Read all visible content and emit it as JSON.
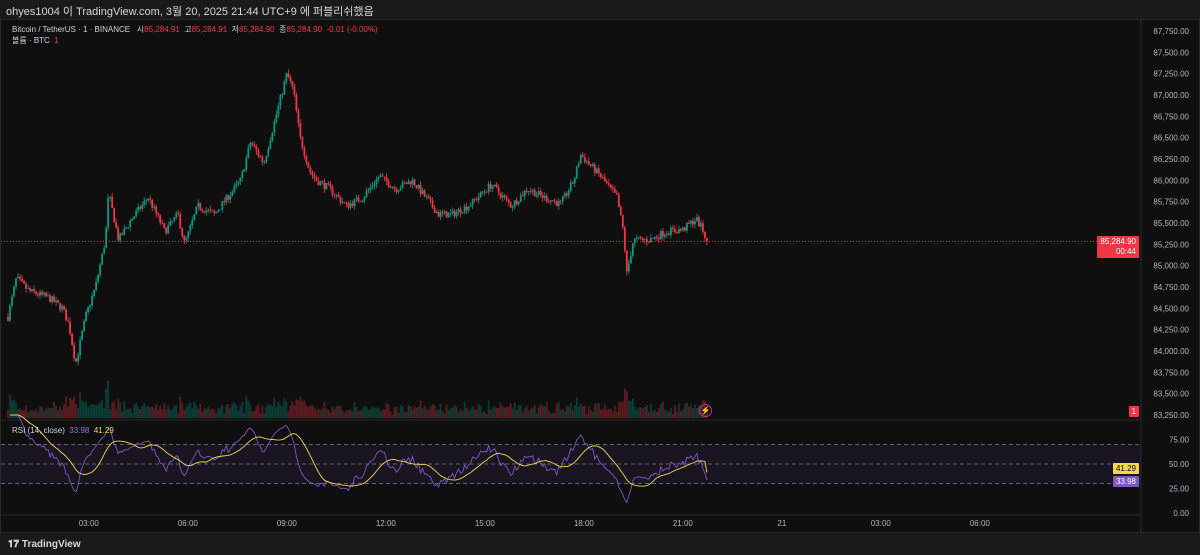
{
  "topbar": {
    "text": "ohyes1004 이 TradingView.com, 3월 20, 2025 21:44 UTC+9 에 퍼블리쉬했음"
  },
  "legend": {
    "symbol": "Bitcoin / TetherUS · 1 · BINANCE",
    "o_label": "시",
    "o": "85,284.91",
    "h_label": "고",
    "h": "85,284.91",
    "l_label": "저",
    "l": "85,284.90",
    "c_label": "종",
    "c": "85,284.90",
    "change": "-0.01 (-0.00%)",
    "volume_label": "볼륨 · BTC",
    "volume": "1"
  },
  "rsi_legend": {
    "label": "RSI (14, close)",
    "rsi": "33.98",
    "ma": "41.29"
  },
  "price_tag": {
    "price": "85,284.90",
    "countdown": "00:44"
  },
  "volume_tag": "1",
  "rsi_tags": {
    "ma": "41.29",
    "rsi": "33.98"
  },
  "footer": {
    "brand": "TradingView"
  },
  "colors": {
    "up": "#089981",
    "down": "#f23645",
    "rsi": "#7e57c2",
    "rsi_ma": "#f5d94b"
  },
  "chart_data": {
    "type": "candlestick",
    "title": "Bitcoin / TetherUS · 1 · BINANCE",
    "ylim": [
      83250,
      87750
    ],
    "y_ticks": [
      "87,750.00",
      "87,500.00",
      "87,250.00",
      "87,000.00",
      "86,750.00",
      "86,500.00",
      "86,250.00",
      "86,000.00",
      "85,750.00",
      "85,500.00",
      "85,250.00",
      "85,000.00",
      "84,750.00",
      "84,500.00",
      "84,250.00",
      "84,000.00",
      "83,750.00",
      "83,500.00",
      "83,250.00"
    ],
    "x_ticks": [
      {
        "h": 3,
        "label": "03:00"
      },
      {
        "h": 6,
        "label": "06:00"
      },
      {
        "h": 9,
        "label": "09:00"
      },
      {
        "h": 12,
        "label": "12:00"
      },
      {
        "h": 15,
        "label": "15:00"
      },
      {
        "h": 18,
        "label": "18:00"
      },
      {
        "h": 21,
        "label": "21:00"
      },
      {
        "h": 24,
        "label": "21"
      },
      {
        "h": 27,
        "label": "03:00"
      },
      {
        "h": 30,
        "label": "06:00"
      }
    ],
    "x_range_hours": [
      0.55,
      31.2
    ],
    "price_path": [
      [
        0.55,
        84400
      ],
      [
        0.8,
        84850
      ],
      [
        1.2,
        84700
      ],
      [
        1.8,
        84620
      ],
      [
        2.2,
        84500
      ],
      [
        2.4,
        84300
      ],
      [
        2.6,
        83850
      ],
      [
        2.9,
        84400
      ],
      [
        3.2,
        84750
      ],
      [
        3.5,
        85300
      ],
      [
        3.6,
        85850
      ],
      [
        3.9,
        85300
      ],
      [
        4.3,
        85550
      ],
      [
        4.8,
        85800
      ],
      [
        5.3,
        85400
      ],
      [
        5.7,
        85600
      ],
      [
        5.9,
        85250
      ],
      [
        6.3,
        85700
      ],
      [
        6.8,
        85600
      ],
      [
        7.2,
        85800
      ],
      [
        7.6,
        86000
      ],
      [
        7.9,
        86450
      ],
      [
        8.3,
        86200
      ],
      [
        8.7,
        86800
      ],
      [
        9.0,
        87250
      ],
      [
        9.2,
        87050
      ],
      [
        9.4,
        86500
      ],
      [
        9.7,
        86100
      ],
      [
        9.9,
        86000
      ],
      [
        10.3,
        85900
      ],
      [
        10.8,
        85700
      ],
      [
        11.3,
        85800
      ],
      [
        11.8,
        86050
      ],
      [
        12.3,
        85900
      ],
      [
        12.8,
        86000
      ],
      [
        13.2,
        85800
      ],
      [
        13.6,
        85600
      ],
      [
        14.0,
        85600
      ],
      [
        14.5,
        85700
      ],
      [
        15.2,
        85950
      ],
      [
        15.8,
        85700
      ],
      [
        16.3,
        85900
      ],
      [
        16.8,
        85800
      ],
      [
        17.3,
        85720
      ],
      [
        17.7,
        86000
      ],
      [
        17.9,
        86300
      ],
      [
        18.5,
        86050
      ],
      [
        19.0,
        85800
      ],
      [
        19.2,
        85400
      ],
      [
        19.3,
        84900
      ],
      [
        19.5,
        85300
      ],
      [
        20.0,
        85300
      ],
      [
        20.5,
        85400
      ],
      [
        21.0,
        85420
      ],
      [
        21.4,
        85550
      ],
      [
        21.6,
        85420
      ],
      [
        21.73,
        85285
      ]
    ],
    "last_price": 85284.9,
    "rsi": {
      "period": 14,
      "ylim": [
        0,
        100
      ],
      "bands": [
        30,
        70
      ],
      "y_ticks": [
        "75.00",
        "50.00",
        "25.00",
        "0.00"
      ],
      "last": 33.98,
      "ma_last": 41.29
    }
  }
}
